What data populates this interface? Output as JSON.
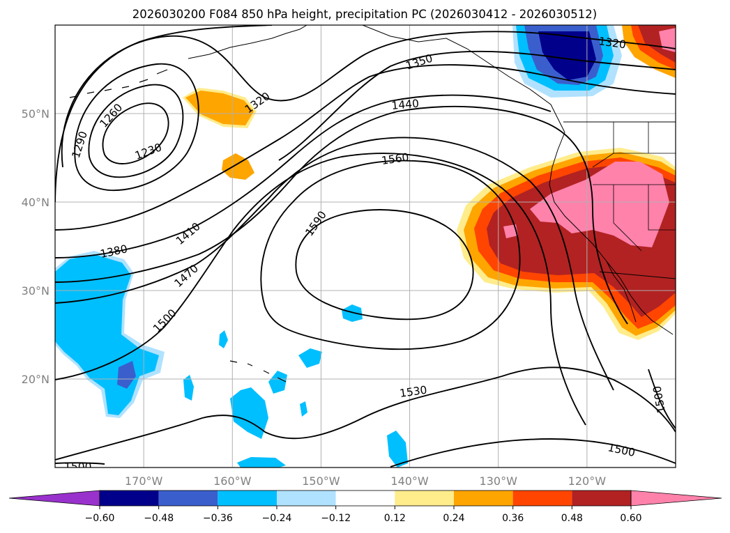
{
  "title": "2026030200 F084 850 hPa height, precipitation PC (2026030412 - 2026030512)",
  "map": {
    "lon_range": [
      -180,
      -110
    ],
    "lat_range": [
      10,
      60
    ],
    "lon_ticks": [
      {
        "value": -170,
        "label": "170°W"
      },
      {
        "value": -160,
        "label": "160°W"
      },
      {
        "value": -150,
        "label": "150°W"
      },
      {
        "value": -140,
        "label": "140°W"
      },
      {
        "value": -130,
        "label": "130°W"
      },
      {
        "value": -120,
        "label": "120°W"
      }
    ],
    "lat_ticks": [
      {
        "value": 20,
        "label": "20°N"
      },
      {
        "value": 30,
        "label": "30°N"
      },
      {
        "value": 40,
        "label": "40°N"
      },
      {
        "value": 50,
        "label": "50°N"
      }
    ],
    "gridlines": true,
    "height_contour_labels": [
      "1230",
      "1260",
      "1290",
      "1320",
      "1320",
      "1350",
      "1380",
      "1410",
      "1440",
      "1470",
      "1500",
      "1500",
      "1500",
      "1500",
      "1530",
      "1560",
      "1590"
    ]
  },
  "colorbar": {
    "extend": "both",
    "tick_labels": [
      "−0.60",
      "−0.48",
      "−0.36",
      "−0.24",
      "−0.12",
      "0.12",
      "0.24",
      "0.36",
      "0.48",
      "0.60"
    ],
    "colors": [
      "#9932cc",
      "#00008b",
      "#3a5fcd",
      "#00bfff",
      "#b0e2ff",
      "#ffffff",
      "#ffec8b",
      "#ffa500",
      "#ff4500",
      "#b22222",
      "#ff82ab"
    ]
  }
}
